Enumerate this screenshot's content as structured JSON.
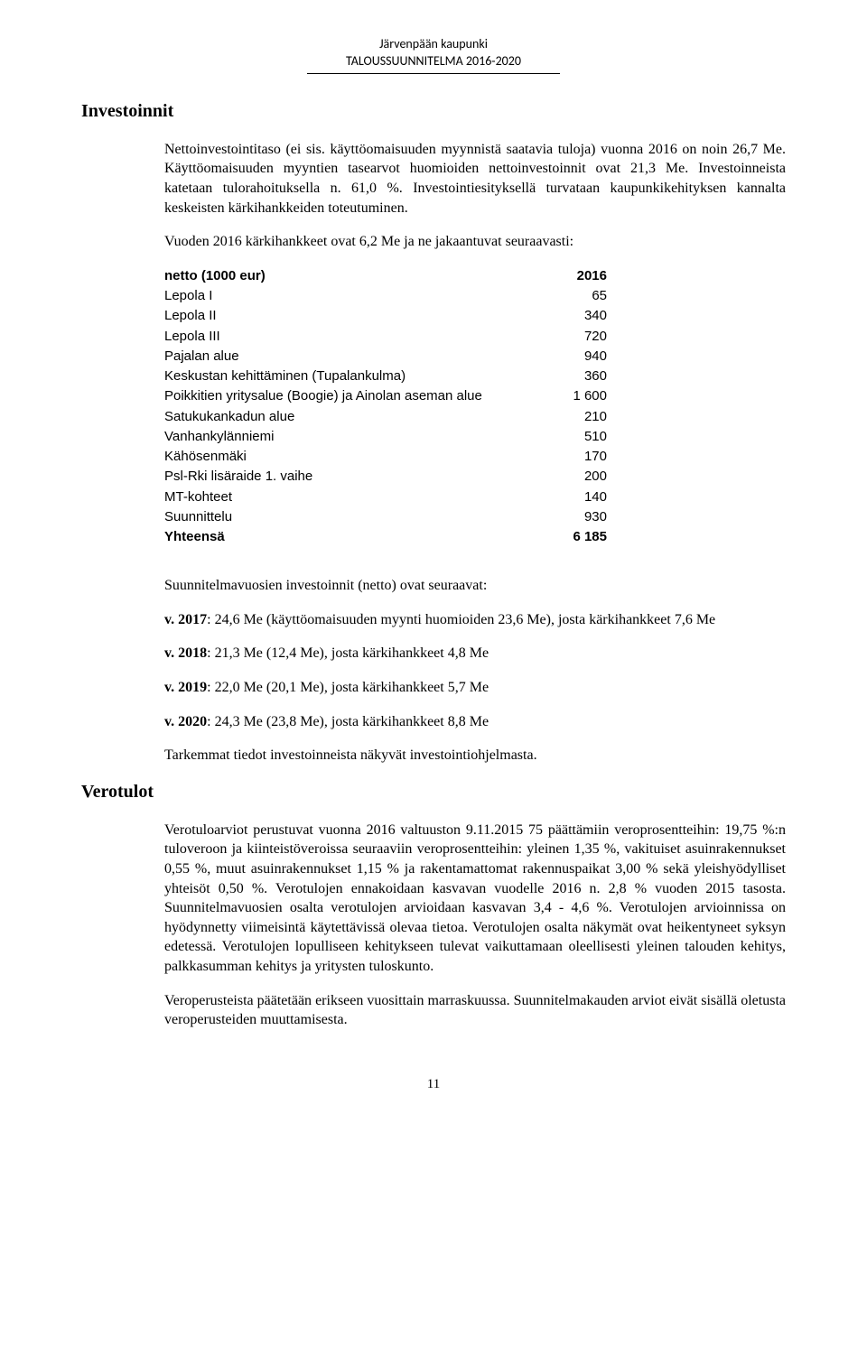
{
  "header": {
    "line1": "Järvenpään kaupunki",
    "line2": "TALOUSSUUNNITELMA 2016-2020"
  },
  "sections": {
    "investments": {
      "title": "Investoinnit",
      "para1": "Nettoinvestointitaso (ei sis. käyttöomaisuuden myynnistä saatavia tuloja) vuonna 2016 on noin 26,7 Me. Käyttöomaisuuden myyntien tasearvot huomioiden nettoinvestoinnit ovat 21,3 Me. Investoinneista katetaan tulorahoituksella n. 61,0 %. Investointiesityksellä turvataan kaupunkikehityksen kannalta keskeisten kärkihankkeiden toteutuminen.",
      "para2": "Vuoden 2016 kärkihankkeet ovat 6,2 Me ja ne jakaantuvat seuraavasti:",
      "table": {
        "header_label": "netto (1000 eur)",
        "header_year": "2016",
        "rows": [
          {
            "label": "Lepola I",
            "value": "65"
          },
          {
            "label": "Lepola II",
            "value": "340"
          },
          {
            "label": "Lepola III",
            "value": "720"
          },
          {
            "label": "Pajalan alue",
            "value": "940"
          },
          {
            "label": "Keskustan kehittäminen (Tupalankulma)",
            "value": "360"
          },
          {
            "label": "Poikkitien yritysalue (Boogie) ja Ainolan aseman alue",
            "value": "1 600"
          },
          {
            "label": "Satukukankadun alue",
            "value": "210"
          },
          {
            "label": "Vanhankylänniemi",
            "value": "510"
          },
          {
            "label": "Kähösenmäki",
            "value": "170"
          },
          {
            "label": "Psl-Rki lisäraide 1. vaihe",
            "value": "200"
          },
          {
            "label": "MT-kohteet",
            "value": "140"
          },
          {
            "label": "Suunnittelu",
            "value": "930"
          }
        ],
        "total_label": "Yhteensä",
        "total_value": "6 185"
      },
      "plan_intro": "Suunnitelmavuosien investoinnit (netto) ovat seuraavat:",
      "plan_lines": [
        {
          "bold": "v. 2017",
          "rest": ": 24,6 Me (käyttöomaisuuden myynti huomioiden 23,6 Me), josta kärkihankkeet 7,6 Me"
        },
        {
          "bold": "v. 2018",
          "rest": ": 21,3 Me (12,4 Me), josta kärkihankkeet 4,8 Me"
        },
        {
          "bold": "v. 2019",
          "rest": ": 22,0 Me (20,1 Me), josta kärkihankkeet 5,7 Me"
        },
        {
          "bold": "v. 2020",
          "rest": ": 24,3 Me (23,8 Me), josta kärkihankkeet 8,8 Me"
        }
      ],
      "closing": "Tarkemmat tiedot investoinneista näkyvät investointiohjelmasta."
    },
    "tax": {
      "title": "Verotulot",
      "para1": "Verotuloarviot perustuvat vuonna 2016 valtuuston 9.11.2015 75 päättämiin veroprosentteihin: 19,75 %:n tuloveroon ja kiinteistöveroissa seuraaviin veroprosentteihin: yleinen 1,35 %, vakituiset asuinrakennukset 0,55 %, muut asuinrakennukset 1,15 % ja rakentamattomat rakennuspaikat 3,00 % sekä yleishyödylliset yhteisöt 0,50 %. Verotulojen ennakoidaan kasvavan vuodelle 2016 n. 2,8 % vuoden 2015 tasosta. Suunnitelmavuosien osalta verotulojen arvioidaan kasvavan 3,4 - 4,6 %. Verotulojen arvioinnissa on hyödynnetty viimeisintä käytettävissä olevaa tietoa. Verotulojen osalta näkymät ovat heikentyneet syksyn edetessä. Verotulojen lopulliseen kehitykseen tulevat vaikuttamaan oleellisesti yleinen talouden kehitys, palkkasumman kehitys ja yritysten tuloskunto.",
      "para2": "Veroperusteista päätetään erikseen vuosittain marraskuussa. Suunnitelmakauden arviot eivät sisällä oletusta veroperusteiden muuttamisesta."
    }
  },
  "page_number": "11"
}
